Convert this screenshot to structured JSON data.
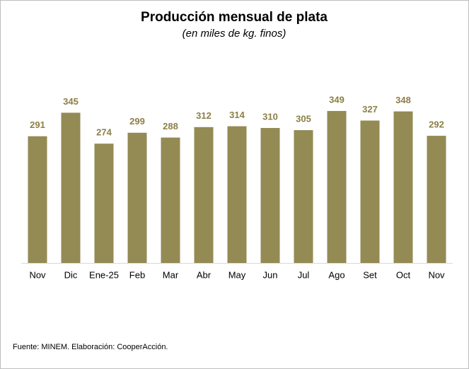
{
  "chart_data": {
    "type": "bar",
    "title": "Producción mensual de plata",
    "subtitle": "(en miles de kg. finos)",
    "categories": [
      "Nov",
      "Dic",
      "Ene-25",
      "Feb",
      "Mar",
      "Abr",
      "May",
      "Jun",
      "Jul",
      "Ago",
      "Set",
      "Oct",
      "Nov"
    ],
    "values": [
      291,
      345,
      274,
      299,
      288,
      312,
      314,
      310,
      305,
      349,
      327,
      348,
      292
    ],
    "color": "#948a54",
    "source": "Fuente: MINEM. Elaboración: CooperAcción."
  }
}
